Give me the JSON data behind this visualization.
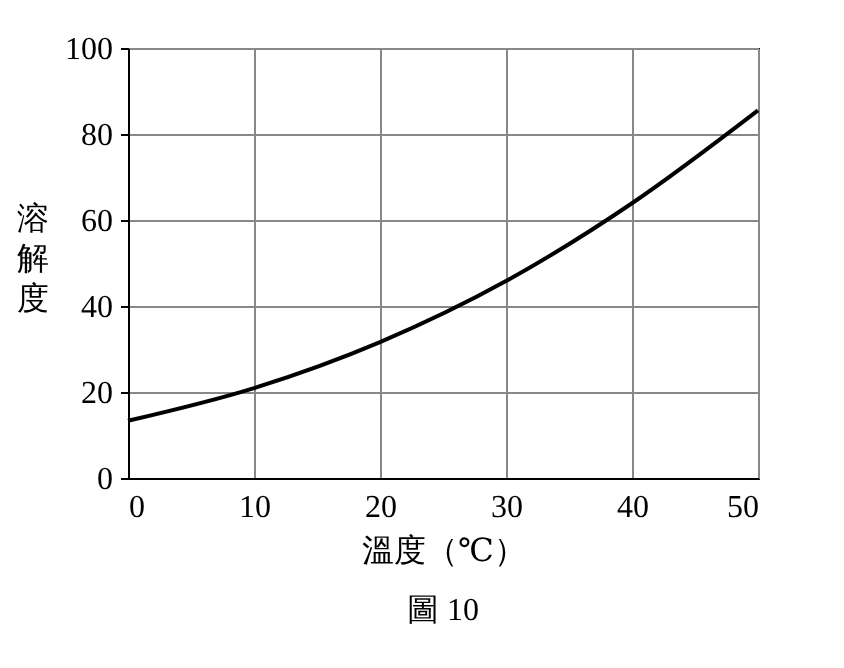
{
  "chart_data": {
    "type": "line",
    "xlabel": "溫度（℃）",
    "ylabel": "溶解度",
    "annotations": [
      "圖 10"
    ],
    "x": [
      0,
      10,
      20,
      30,
      40,
      50
    ],
    "series": [
      {
        "color": "#000000",
        "values": [
          13.3,
          20.9,
          31.6,
          45.8,
          63.9,
          85.5
        ]
      }
    ],
    "xlim": [
      0,
      50
    ],
    "xticks": [
      0,
      10,
      20,
      30,
      40,
      50
    ],
    "ylim": [
      0,
      100
    ],
    "yticks": [
      0,
      20,
      40,
      60,
      80,
      100
    ],
    "grid": true,
    "legend": false,
    "marker": "none",
    "line_style": "solid"
  }
}
